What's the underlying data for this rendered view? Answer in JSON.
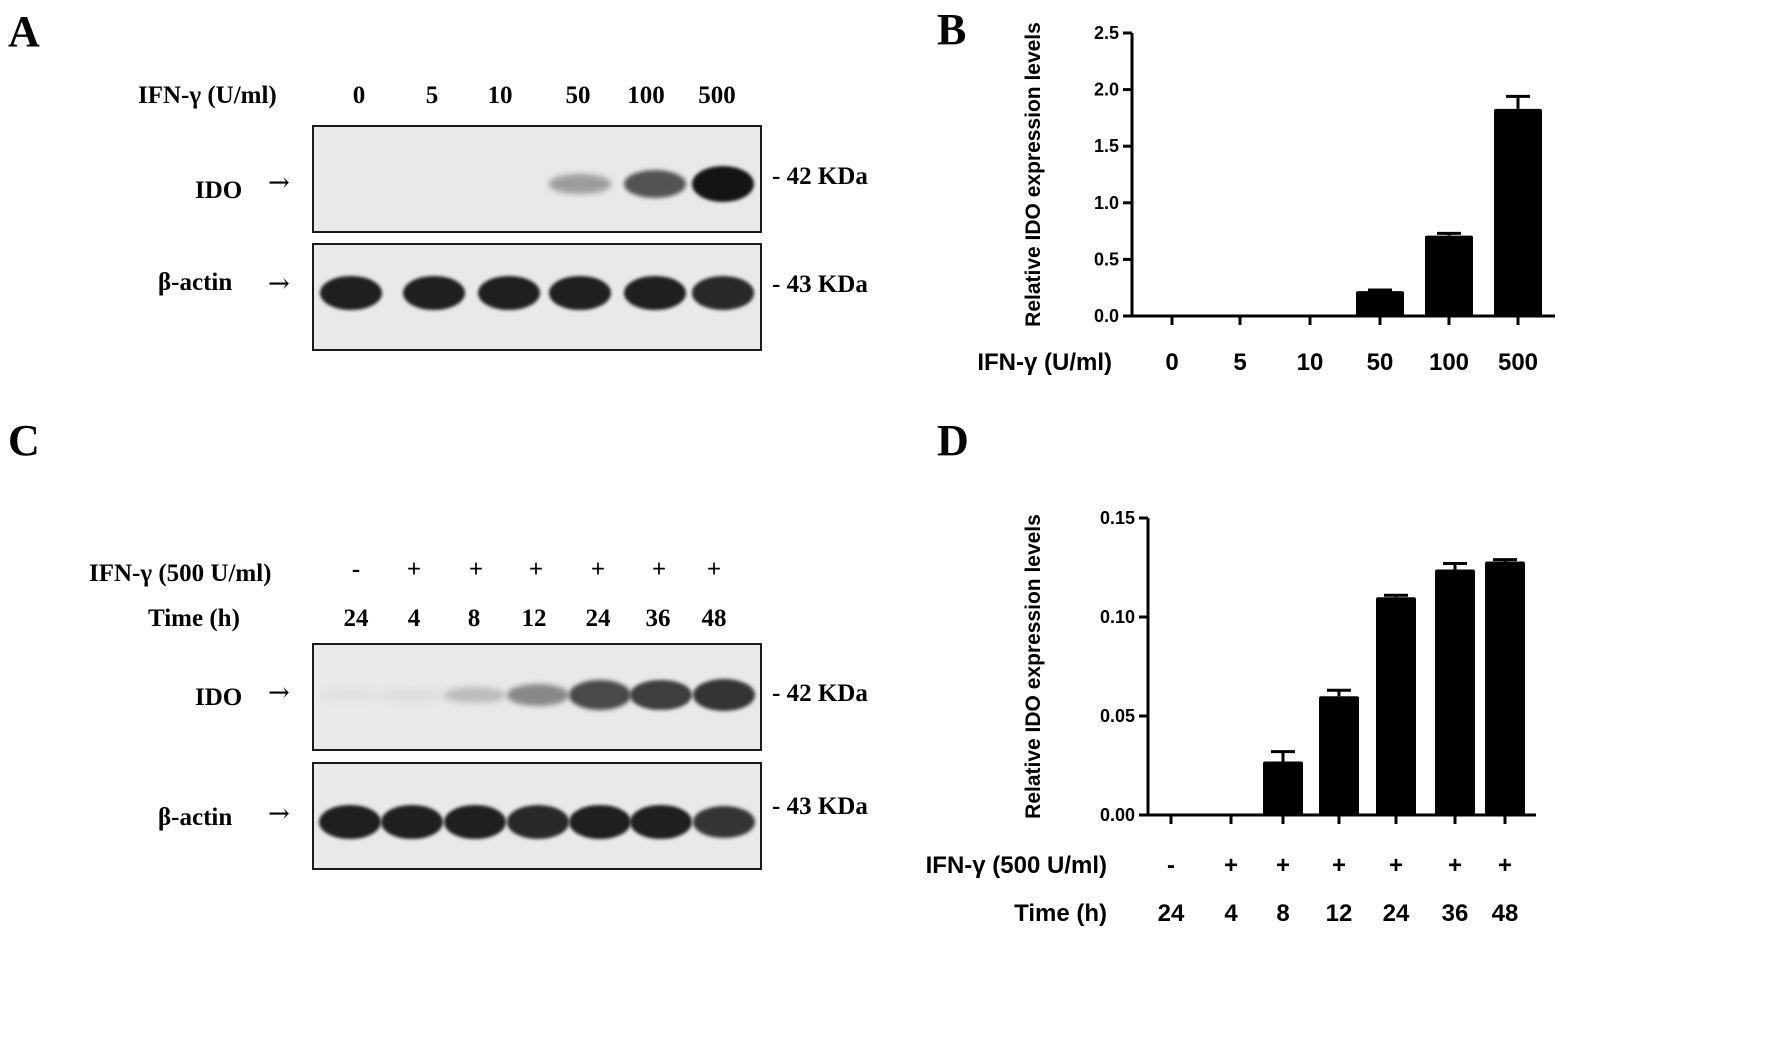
{
  "panels": {
    "A": "A",
    "B": "B",
    "C": "C",
    "D": "D"
  },
  "blotA": {
    "condition_label": "IFN-γ  (U/ml)",
    "lanes": [
      "0",
      "5",
      "10",
      "50",
      "100",
      "500"
    ],
    "rows": [
      {
        "protein": "IDO",
        "arrow": "→",
        "marker": "- 42 KDa",
        "intensity": [
          0,
          0,
          0,
          0.35,
          0.7,
          1.0
        ]
      },
      {
        "protein": "β-actin",
        "arrow": "→",
        "marker": "- 43 KDa",
        "intensity": [
          0.95,
          0.95,
          0.95,
          0.95,
          0.95,
          0.9
        ]
      }
    ]
  },
  "blotC": {
    "condition_label": "IFN-γ  (500 U/ml)",
    "time_label": "Time (h)",
    "treatment": [
      "-",
      "+",
      "+",
      "+",
      "+",
      "+",
      "+"
    ],
    "times": [
      "24",
      "4",
      "8",
      "12",
      "24",
      "36",
      "48"
    ],
    "rows": [
      {
        "protein": "IDO",
        "arrow": "→",
        "marker": "- 42 KDa",
        "intensity": [
          0.03,
          0.05,
          0.2,
          0.45,
          0.75,
          0.8,
          0.85
        ]
      },
      {
        "protein": "β-actin",
        "arrow": "→",
        "marker": "- 43 KDa",
        "intensity": [
          0.95,
          0.95,
          0.95,
          0.9,
          0.95,
          0.95,
          0.85
        ]
      }
    ]
  },
  "chart_data": [
    {
      "type": "bar",
      "panel": "B",
      "ylabel": "Relative IDO expression levels",
      "x_row_label": "IFN-γ (U/ml)",
      "categories": [
        "0",
        "5",
        "10",
        "50",
        "100",
        "500"
      ],
      "values": [
        0,
        0,
        0,
        0.22,
        0.71,
        1.83
      ],
      "errors": [
        0,
        0,
        0,
        0.01,
        0.02,
        0.11
      ],
      "ylim": [
        0,
        2.5
      ],
      "yticks": [
        "0.0",
        "0.5",
        "1.0",
        "1.5",
        "2.0",
        "2.5"
      ],
      "bar_color": "#000000"
    },
    {
      "type": "bar",
      "panel": "D",
      "ylabel": "Relative IDO expression levels",
      "x_row_label": "IFN-γ (500 U/ml)",
      "x_row2_label": "Time (h)",
      "categories": [
        "-",
        "+",
        "+",
        "+",
        "+",
        "+",
        "+"
      ],
      "categories_row2": [
        "24",
        "4",
        "8",
        "12",
        "24",
        "36",
        "48"
      ],
      "values": [
        0,
        0,
        0.027,
        0.06,
        0.11,
        0.124,
        0.128
      ],
      "errors": [
        0,
        0,
        0.005,
        0.003,
        0.001,
        0.003,
        0.001
      ],
      "ylim": [
        0,
        0.15
      ],
      "yticks": [
        "0.00",
        "0.05",
        "0.10",
        "0.15"
      ],
      "bar_color": "#000000"
    }
  ]
}
